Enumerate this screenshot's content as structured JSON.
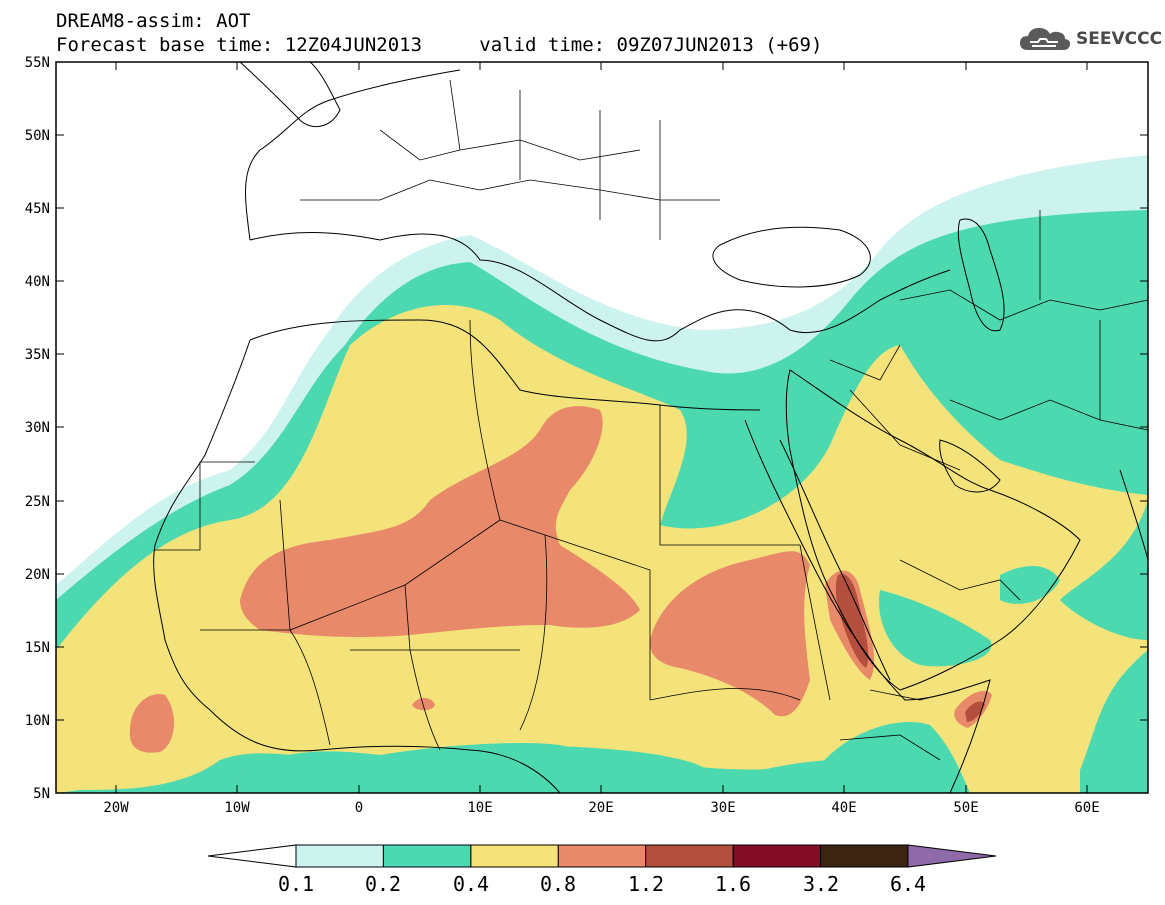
{
  "header": {
    "title_line1": "DREAM8-assim: AOT",
    "base_label": "Forecast base time: 12Z04JUN2013",
    "valid_label": "valid time: 09Z07JUN2013 (+69)",
    "brand": "SEEVCCC"
  },
  "axes": {
    "lon_labels": [
      "20W",
      "10W",
      "0",
      "10E",
      "20E",
      "30E",
      "40E",
      "50E",
      "60E"
    ],
    "lat_labels": [
      "55N",
      "50N",
      "45N",
      "40N",
      "35N",
      "30N",
      "25N",
      "20N",
      "15N",
      "10N",
      "5N"
    ]
  },
  "colorbar": {
    "levels": [
      "0.1",
      "0.2",
      "0.4",
      "0.8",
      "1.2",
      "1.6",
      "3.2",
      "6.4"
    ],
    "colors": [
      "#cdf3ee",
      "#4dd9b0",
      "#f4e37a",
      "#e88a69",
      "#b44f3e",
      "#850c27",
      "#3c2412",
      "#8f6aa8"
    ]
  },
  "map": {
    "variable": "AOT",
    "region": "North Africa, Mediterranean, Middle East",
    "lon_range": [
      -25,
      65
    ],
    "lat_range": [
      5,
      55
    ]
  }
}
